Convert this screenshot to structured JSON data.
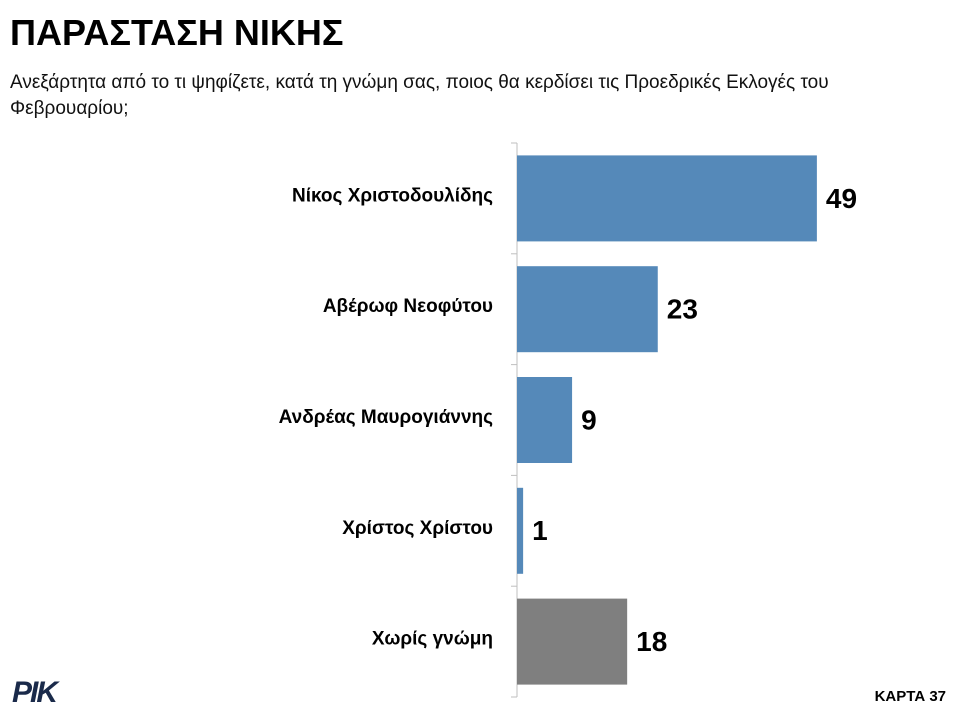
{
  "chart_data": {
    "type": "bar",
    "orientation": "horizontal",
    "title": "ΠΑΡΑΣΤΑΣΗ ΝΙΚΗΣ",
    "subtitle": "Ανεξάρτητα από το τι ψηφίζετε, κατά τη γνώμη σας, ποιος θα κερδίσει τις Προεδρικές Εκλογές του Φεβρουαρίου;",
    "categories": [
      "Νίκος Χριστοδουλίδης",
      "Αβέρωφ Νεοφύτου",
      "Ανδρέας Μαυρογιάννης",
      "Χρίστος Χρίστου",
      "Χωρίς γνώμη"
    ],
    "values": [
      49,
      23,
      9,
      1,
      18
    ],
    "colors": [
      "#5589b9",
      "#5589b9",
      "#5589b9",
      "#5589b9",
      "#7f7f7f"
    ]
  },
  "footer": {
    "logo": "ΡΙΚ",
    "page": "ΚΑΡΤΑ 37"
  }
}
